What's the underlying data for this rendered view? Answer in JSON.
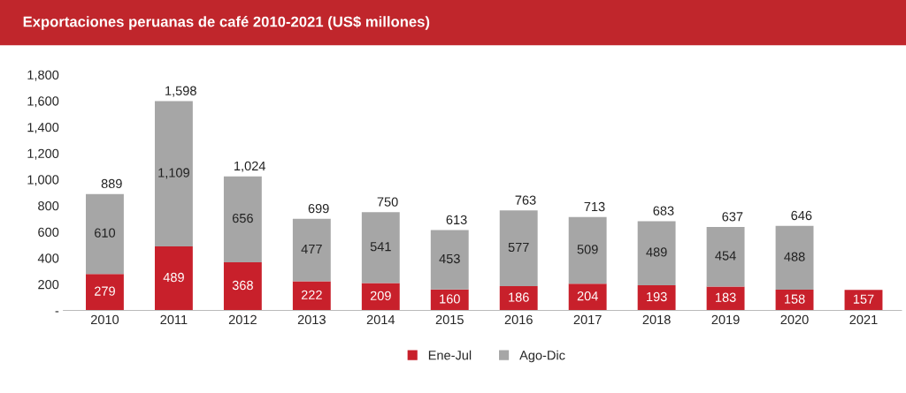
{
  "chart_data": {
    "type": "bar",
    "title": "Exportaciones peruanas de café 2010-2021 (US$ millones)",
    "stacked": true,
    "legend": "bottom",
    "grid": false,
    "categories": [
      "2010",
      "2011",
      "2012",
      "2013",
      "2014",
      "2015",
      "2016",
      "2017",
      "2018",
      "2019",
      "2020",
      "2021"
    ],
    "series": [
      {
        "name": "Ene-Jul",
        "color": "#c8202b",
        "values": [
          279,
          489,
          368,
          222,
          209,
          160,
          186,
          204,
          193,
          183,
          158,
          157
        ],
        "value_labels": [
          "279",
          "489",
          "368",
          "222",
          "209",
          "160",
          "186",
          "204",
          "193",
          "183",
          "158",
          "157"
        ]
      },
      {
        "name": "Ago-Dic",
        "color": "#a6a6a6",
        "values": [
          610,
          1109,
          656,
          477,
          541,
          453,
          577,
          509,
          489,
          454,
          488,
          null
        ],
        "value_labels": [
          "610",
          "1,109",
          "656",
          "477",
          "541",
          "453",
          "577",
          "509",
          "489",
          "454",
          "488",
          null
        ]
      }
    ],
    "totals": [
      "889",
      "1,598",
      "1,024",
      "699",
      "750",
      "613",
      "763",
      "713",
      "683",
      "637",
      "646",
      null
    ],
    "ylim": [
      0,
      1800
    ],
    "yticks": [
      {
        "value": 0,
        "label": "-"
      },
      200,
      400,
      600,
      800,
      {
        "value": 1000,
        "label": "1,000"
      },
      {
        "value": 1200,
        "label": "1,200"
      },
      {
        "value": 1400,
        "label": "1,400"
      },
      {
        "value": 1600,
        "label": "1,600"
      },
      {
        "value": 1800,
        "label": "1,800"
      }
    ]
  }
}
